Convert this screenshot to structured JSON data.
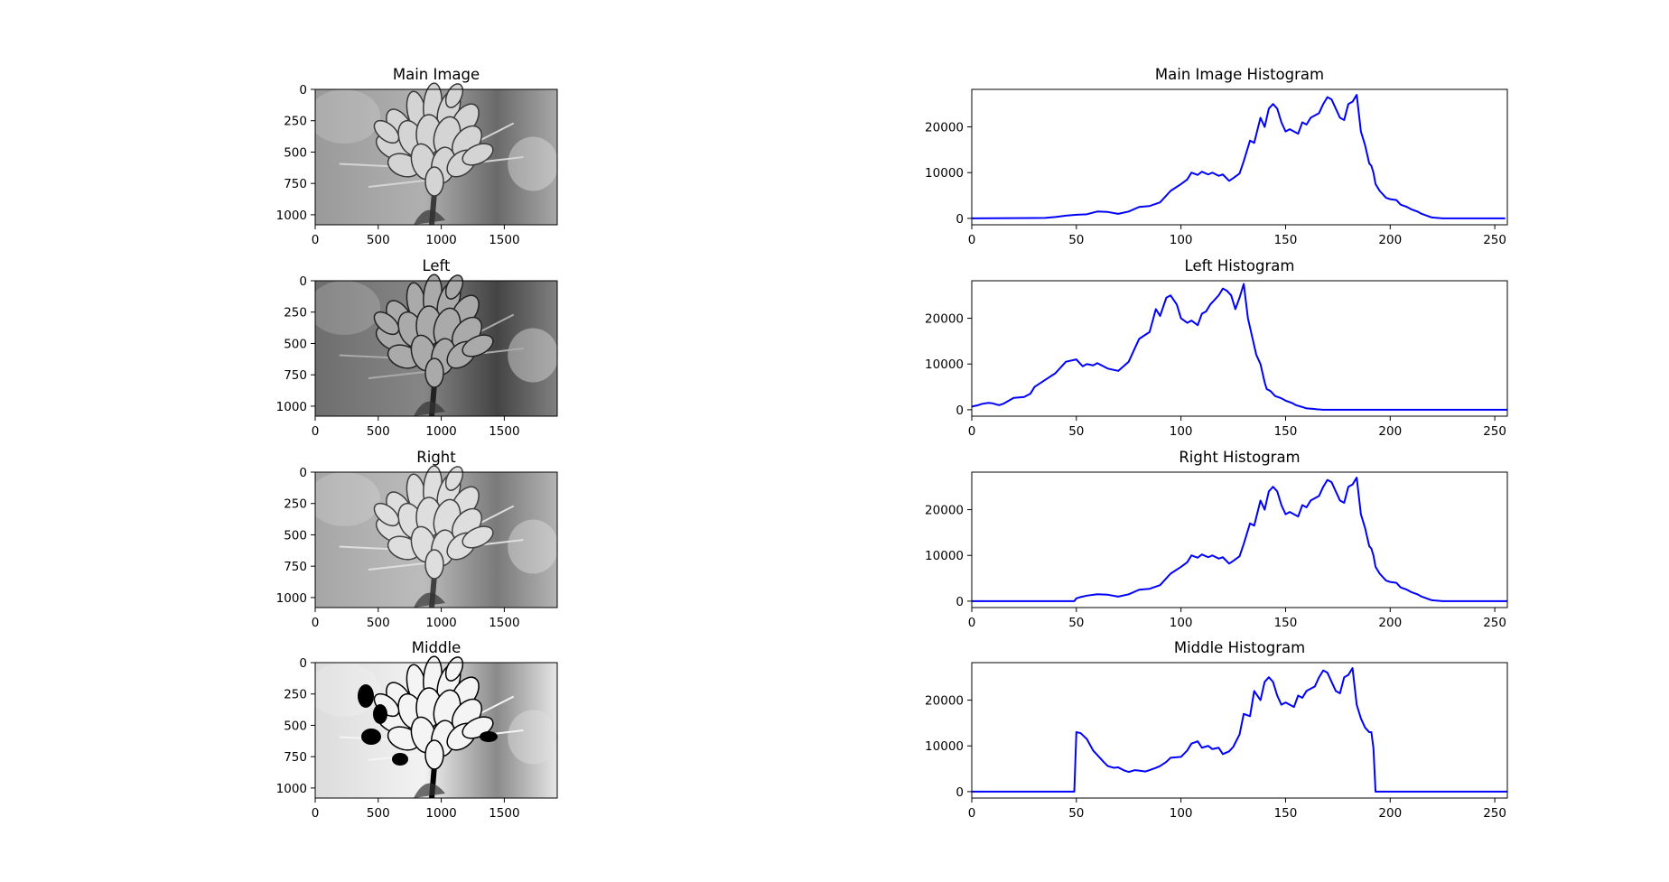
{
  "figure": {
    "images": [
      {
        "title": "Main Image",
        "variant": "main",
        "xticks": [
          0,
          500,
          1000,
          1500
        ],
        "yticks": [
          0,
          250,
          500,
          750,
          1000
        ],
        "xlim": [
          0,
          1920
        ],
        "ylim": [
          1080,
          0
        ]
      },
      {
        "title": "Left",
        "variant": "left",
        "xticks": [
          0,
          500,
          1000,
          1500
        ],
        "yticks": [
          0,
          250,
          500,
          750,
          1000
        ],
        "xlim": [
          0,
          1920
        ],
        "ylim": [
          1080,
          0
        ]
      },
      {
        "title": "Right",
        "variant": "right",
        "xticks": [
          0,
          500,
          1000,
          1500
        ],
        "yticks": [
          0,
          250,
          500,
          750,
          1000
        ],
        "xlim": [
          0,
          1920
        ],
        "ylim": [
          1080,
          0
        ]
      },
      {
        "title": "Middle",
        "variant": "middle",
        "xticks": [
          0,
          500,
          1000,
          1500
        ],
        "yticks": [
          0,
          250,
          500,
          750,
          1000
        ],
        "xlim": [
          0,
          1920
        ],
        "ylim": [
          1080,
          0
        ]
      }
    ]
  },
  "chart_data": [
    {
      "type": "line",
      "title": "Main Image Histogram",
      "color": "#0000ff",
      "xlim": [
        0,
        256
      ],
      "ylim": [
        -1400,
        28200
      ],
      "xticks": [
        0,
        50,
        100,
        150,
        200,
        250
      ],
      "yticks": [
        0,
        10000,
        20000
      ],
      "x": [
        0,
        35,
        40,
        45,
        50,
        55,
        60,
        65,
        70,
        75,
        80,
        85,
        90,
        95,
        100,
        103,
        105,
        108,
        110,
        113,
        115,
        118,
        120,
        123,
        125,
        128,
        130,
        133,
        135,
        138,
        140,
        142,
        144,
        146,
        148,
        150,
        152,
        154,
        156,
        158,
        160,
        162,
        164,
        166,
        168,
        170,
        172,
        174,
        176,
        178,
        180,
        182,
        184,
        186,
        188,
        190,
        191,
        192,
        193,
        195,
        198,
        200,
        203,
        205,
        208,
        210,
        213,
        215,
        218,
        220,
        225,
        230,
        240,
        250,
        255
      ],
      "y": [
        0,
        100,
        300,
        600,
        800,
        900,
        1500,
        1400,
        1000,
        1500,
        2500,
        2700,
        3500,
        6000,
        7500,
        8500,
        10000,
        9500,
        10200,
        9600,
        10000,
        9300,
        9600,
        8200,
        8800,
        9800,
        12500,
        17000,
        16500,
        22000,
        20000,
        24000,
        25000,
        24000,
        21000,
        19000,
        19500,
        19000,
        18500,
        21000,
        20500,
        22000,
        22500,
        23000,
        25000,
        26500,
        26000,
        24000,
        22000,
        21500,
        25000,
        25500,
        27000,
        19000,
        16000,
        12000,
        11500,
        10000,
        7500,
        6000,
        4500,
        4200,
        4000,
        3000,
        2500,
        2000,
        1500,
        1000,
        500,
        200,
        0,
        0,
        0,
        0,
        0
      ]
    },
    {
      "type": "line",
      "title": "Left Histogram",
      "color": "#0000ff",
      "xlim": [
        0,
        256
      ],
      "ylim": [
        -1400,
        28200
      ],
      "xticks": [
        0,
        50,
        100,
        150,
        200,
        250
      ],
      "yticks": [
        0,
        10000,
        20000
      ],
      "x": [
        0,
        3,
        5,
        8,
        10,
        13,
        15,
        20,
        25,
        28,
        30,
        35,
        40,
        45,
        50,
        53,
        55,
        58,
        60,
        65,
        70,
        75,
        80,
        85,
        88,
        90,
        93,
        95,
        98,
        100,
        103,
        105,
        108,
        110,
        112,
        114,
        116,
        118,
        120,
        122,
        124,
        126,
        128,
        130,
        132,
        134,
        136,
        138,
        139,
        140,
        141,
        142,
        143,
        145,
        148,
        150,
        153,
        155,
        158,
        160,
        163,
        165,
        168,
        170,
        175,
        180,
        185,
        190,
        195,
        200,
        205,
        210,
        220,
        230,
        240,
        250,
        256
      ],
      "y": [
        700,
        1000,
        1300,
        1500,
        1400,
        1000,
        1300,
        2600,
        2800,
        3500,
        5000,
        6500,
        8000,
        10500,
        11000,
        9500,
        10000,
        9700,
        10200,
        9000,
        8500,
        10500,
        15500,
        17000,
        22000,
        20500,
        24500,
        25000,
        23000,
        20000,
        19000,
        19500,
        18500,
        21000,
        21500,
        23000,
        24000,
        25000,
        26500,
        26000,
        25000,
        22000,
        24500,
        27500,
        20000,
        16000,
        12000,
        10000,
        8000,
        6000,
        4500,
        4300,
        4000,
        3000,
        2500,
        2000,
        1500,
        1000,
        600,
        300,
        200,
        100,
        0,
        0,
        0,
        0,
        0,
        0,
        0,
        0,
        0,
        0,
        0,
        0,
        0,
        0,
        0
      ]
    },
    {
      "type": "line",
      "title": "Right Histogram",
      "color": "#0000ff",
      "xlim": [
        0,
        256
      ],
      "ylim": [
        -1400,
        28200
      ],
      "xticks": [
        0,
        50,
        100,
        150,
        200,
        250
      ],
      "yticks": [
        0,
        10000,
        20000
      ],
      "x": [
        0,
        49,
        50,
        52,
        55,
        60,
        65,
        70,
        75,
        80,
        85,
        90,
        95,
        100,
        103,
        105,
        108,
        110,
        113,
        115,
        118,
        120,
        123,
        125,
        128,
        130,
        133,
        135,
        138,
        140,
        142,
        144,
        146,
        148,
        150,
        152,
        154,
        156,
        158,
        160,
        162,
        164,
        166,
        168,
        170,
        172,
        174,
        176,
        178,
        180,
        182,
        184,
        186,
        188,
        190,
        191,
        192,
        193,
        195,
        198,
        200,
        203,
        205,
        208,
        210,
        213,
        215,
        218,
        220,
        225,
        230,
        240,
        250,
        256
      ],
      "y": [
        0,
        0,
        600,
        900,
        1200,
        1500,
        1400,
        1000,
        1500,
        2500,
        2700,
        3500,
        6000,
        7500,
        8500,
        10000,
        9500,
        10200,
        9600,
        10000,
        9300,
        9600,
        8200,
        8800,
        9800,
        12500,
        17000,
        16500,
        22000,
        20000,
        24000,
        25000,
        24000,
        21000,
        19000,
        19500,
        19000,
        18500,
        21000,
        20500,
        22000,
        22500,
        23000,
        25000,
        26500,
        26000,
        24000,
        22000,
        21500,
        25000,
        25500,
        27000,
        19000,
        16000,
        12000,
        11500,
        10000,
        7500,
        6000,
        4500,
        4200,
        4000,
        3000,
        2500,
        2000,
        1500,
        1000,
        500,
        200,
        0,
        0,
        0,
        0,
        0
      ]
    },
    {
      "type": "line",
      "title": "Middle Histogram",
      "color": "#0000ff",
      "xlim": [
        0,
        256
      ],
      "ylim": [
        -1400,
        28200
      ],
      "xticks": [
        0,
        50,
        100,
        150,
        200,
        250
      ],
      "yticks": [
        0,
        10000,
        20000
      ],
      "x": [
        0,
        49,
        50,
        52,
        55,
        58,
        60,
        63,
        65,
        68,
        70,
        73,
        75,
        78,
        80,
        83,
        85,
        88,
        90,
        93,
        95,
        100,
        103,
        105,
        108,
        110,
        113,
        115,
        118,
        120,
        123,
        125,
        128,
        130,
        133,
        135,
        138,
        140,
        142,
        144,
        146,
        148,
        150,
        152,
        154,
        156,
        158,
        160,
        162,
        164,
        166,
        168,
        170,
        172,
        174,
        176,
        178,
        180,
        182,
        184,
        186,
        188,
        190,
        191,
        192,
        193,
        195,
        198,
        199,
        200,
        210,
        220,
        230,
        240,
        250,
        256
      ],
      "y": [
        0,
        0,
        13000,
        12800,
        11500,
        9000,
        8000,
        6500,
        5600,
        5200,
        5300,
        4600,
        4300,
        4700,
        4600,
        4400,
        4700,
        5200,
        5600,
        6500,
        7400,
        7600,
        9000,
        10500,
        11000,
        9600,
        10000,
        9300,
        9600,
        8200,
        8800,
        9800,
        12500,
        17000,
        16500,
        22000,
        20000,
        24000,
        25000,
        24000,
        21000,
        19000,
        19500,
        19000,
        18500,
        21000,
        20500,
        22000,
        22500,
        23000,
        25000,
        26500,
        26000,
        24000,
        22000,
        21500,
        25000,
        25500,
        27000,
        19000,
        16000,
        14000,
        13000,
        13000,
        9500,
        0,
        0,
        0,
        0,
        0,
        0,
        0,
        0,
        0,
        0,
        0
      ]
    }
  ]
}
